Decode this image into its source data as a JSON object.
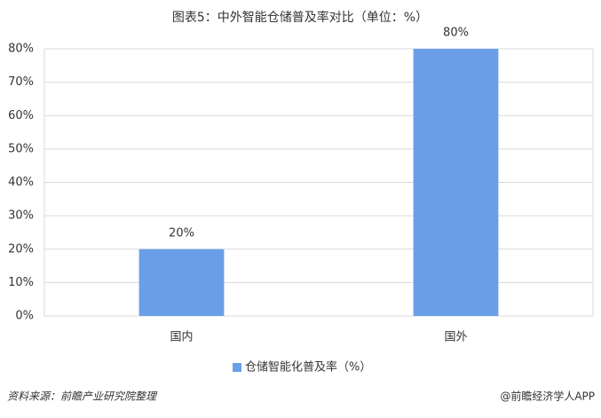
{
  "chart_data": {
    "type": "bar",
    "title": "图表5：中外智能仓储普及率对比（单位：%）",
    "categories": [
      "国内",
      "国外"
    ],
    "series": [
      {
        "name": "仓储智能化普及率（%）",
        "color": "#6a9fe8",
        "values": [
          20,
          80
        ],
        "value_labels": [
          "20%",
          "80%"
        ]
      }
    ],
    "ylim": [
      0,
      80
    ],
    "yticks": [
      {
        "value": 0,
        "label": "0%"
      },
      {
        "value": 10,
        "label": "10%"
      },
      {
        "value": 20,
        "label": "20%"
      },
      {
        "value": 30,
        "label": "30%"
      },
      {
        "value": 40,
        "label": "40%"
      },
      {
        "value": 50,
        "label": "50%"
      },
      {
        "value": 60,
        "label": "60%"
      },
      {
        "value": 70,
        "label": "70%"
      },
      {
        "value": 80,
        "label": "80%"
      }
    ],
    "grid": true,
    "legend": "bottom",
    "source": "资料来源：前瞻产业研究院整理",
    "credit": "@前瞻经济学人APP"
  }
}
